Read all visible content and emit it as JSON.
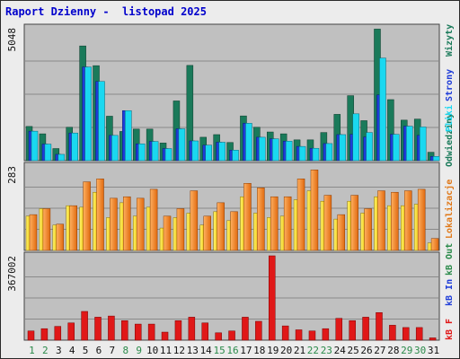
{
  "title": "Raport Dzienny -  listopad 2025",
  "colors": {
    "title": "#0000cc",
    "weekday": "#111111",
    "weekend": "#2a8a4a",
    "visits": "#1a7a5a",
    "pages": "#1e3cd8",
    "hits": "#1ad8f0",
    "traffic": "#e01818",
    "panelBg": "#c0c0c0",
    "grid": "#8a8a8a"
  },
  "chart_data": [
    {
      "type": "bar",
      "ytick": "5048",
      "ylim": [
        0,
        5048
      ],
      "categories": [
        "1",
        "2",
        "3",
        "4",
        "5",
        "6",
        "7",
        "8",
        "9",
        "10",
        "11",
        "12",
        "13",
        "14",
        "15",
        "16",
        "17",
        "18",
        "19",
        "20",
        "21",
        "22",
        "23",
        "24",
        "25",
        "26",
        "27",
        "28",
        "29",
        "30",
        "31"
      ],
      "weekend": [
        1,
        2,
        8,
        9,
        15,
        16,
        22,
        23,
        29,
        30
      ],
      "series": [
        {
          "name": "Wizyty",
          "values": [
            1300,
            1020,
            460,
            1270,
            4360,
            3610,
            1690,
            1110,
            1200,
            1200,
            670,
            2270,
            3620,
            890,
            990,
            690,
            1700,
            1270,
            1090,
            1020,
            790,
            790,
            1070,
            1760,
            2470,
            1520,
            5000,
            2320,
            1540,
            1580,
            320
          ]
        },
        {
          "name": "Strony",
          "values": [
            1120,
            630,
            240,
            1050,
            3560,
            3010,
            960,
            1900,
            640,
            730,
            460,
            1210,
            750,
            590,
            700,
            400,
            1420,
            890,
            830,
            740,
            540,
            470,
            650,
            990,
            1000,
            900,
            2500,
            1000,
            1310,
            960,
            160
          ]
        },
        {
          "name": "Pliki",
          "values": [
            1120,
            630,
            240,
            1050,
            3560,
            3010,
            960,
            1900,
            640,
            730,
            460,
            1210,
            750,
            590,
            700,
            400,
            1420,
            890,
            830,
            740,
            540,
            470,
            650,
            990,
            1780,
            1070,
            3900,
            1000,
            1310,
            1280,
            160
          ]
        }
      ]
    },
    {
      "type": "bar",
      "ytick": "283",
      "ylim": [
        0,
        283
      ],
      "series": [
        {
          "name": "Wizyty",
          "values": [
            115,
            140,
            85,
            150,
            145,
            195,
            110,
            160,
            115,
            145,
            75,
            110,
            125,
            85,
            130,
            100,
            180,
            125,
            110,
            115,
            170,
            200,
            165,
            105,
            165,
            125,
            180,
            150,
            150,
            155,
            25
          ]
        },
        {
          "name": "Lokalizacje",
          "values": [
            120,
            140,
            88,
            150,
            230,
            240,
            175,
            180,
            175,
            205,
            115,
            140,
            200,
            115,
            160,
            130,
            225,
            210,
            180,
            180,
            240,
            270,
            185,
            120,
            185,
            140,
            200,
            195,
            200,
            205,
            40
          ]
        }
      ]
    },
    {
      "type": "bar",
      "ytick": "367002",
      "ylim": [
        0,
        367002
      ],
      "series": [
        {
          "name": "kB F",
          "values": [
            40000,
            50000,
            60000,
            75000,
            125000,
            100000,
            105000,
            85000,
            70000,
            70000,
            35000,
            85000,
            100000,
            75000,
            32000,
            40000,
            100000,
            82000,
            367000,
            62000,
            45000,
            40000,
            50000,
            95000,
            85000,
            100000,
            120000,
            65000,
            55000,
            55000,
            10000
          ]
        }
      ]
    }
  ],
  "legend": [
    {
      "text": "Wizyty",
      "color": "#1a7a5a"
    },
    {
      "text": "Strony",
      "color": "#1e3cd8"
    },
    {
      "text": "Pliki",
      "color": "#1ad8f0"
    },
    {
      "text": "Odwiedziny",
      "color": "#1a7a5a"
    },
    {
      "text": "Lokalizacje",
      "color": "#e07818"
    },
    {
      "text": "kB Out",
      "color": "#2a8a4a"
    },
    {
      "text": "kB In",
      "color": "#1e3cd8"
    },
    {
      "text": "kB F",
      "color": "#e01818"
    }
  ]
}
